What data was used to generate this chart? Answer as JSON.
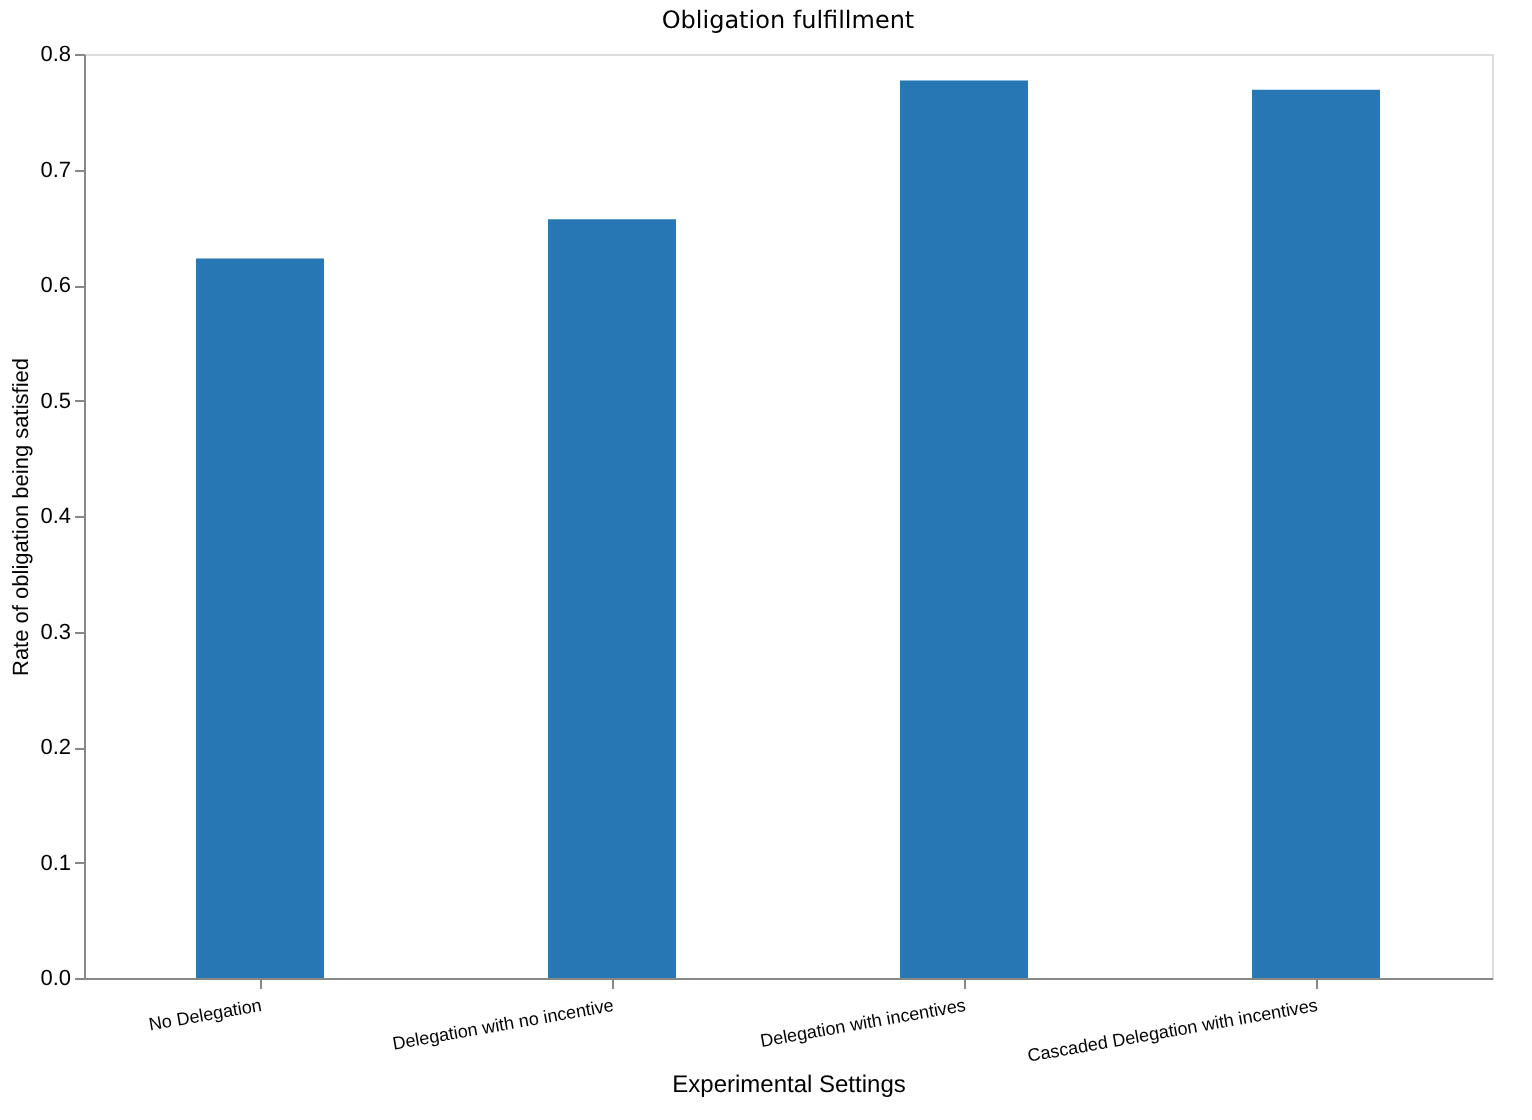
{
  "chart_data": {
    "type": "bar",
    "title": "Obligation fulfillment",
    "xlabel": "Experimental Settings",
    "ylabel": "Rate of obligation being satisfied",
    "categories": [
      "No Delegation",
      "Delegation with no incentive",
      "Delegation with incentives",
      "Cascaded Delegation with incentives"
    ],
    "values": [
      0.623,
      0.657,
      0.777,
      0.769
    ],
    "color": "#2677b4",
    "ylim": [
      0,
      0.8
    ],
    "yticks": [
      {
        "value": 0,
        "label": "0.0"
      },
      0.1,
      0.2,
      0.3,
      0.4,
      0.5,
      0.6,
      0.7,
      0.8
    ],
    "grid": false
  }
}
